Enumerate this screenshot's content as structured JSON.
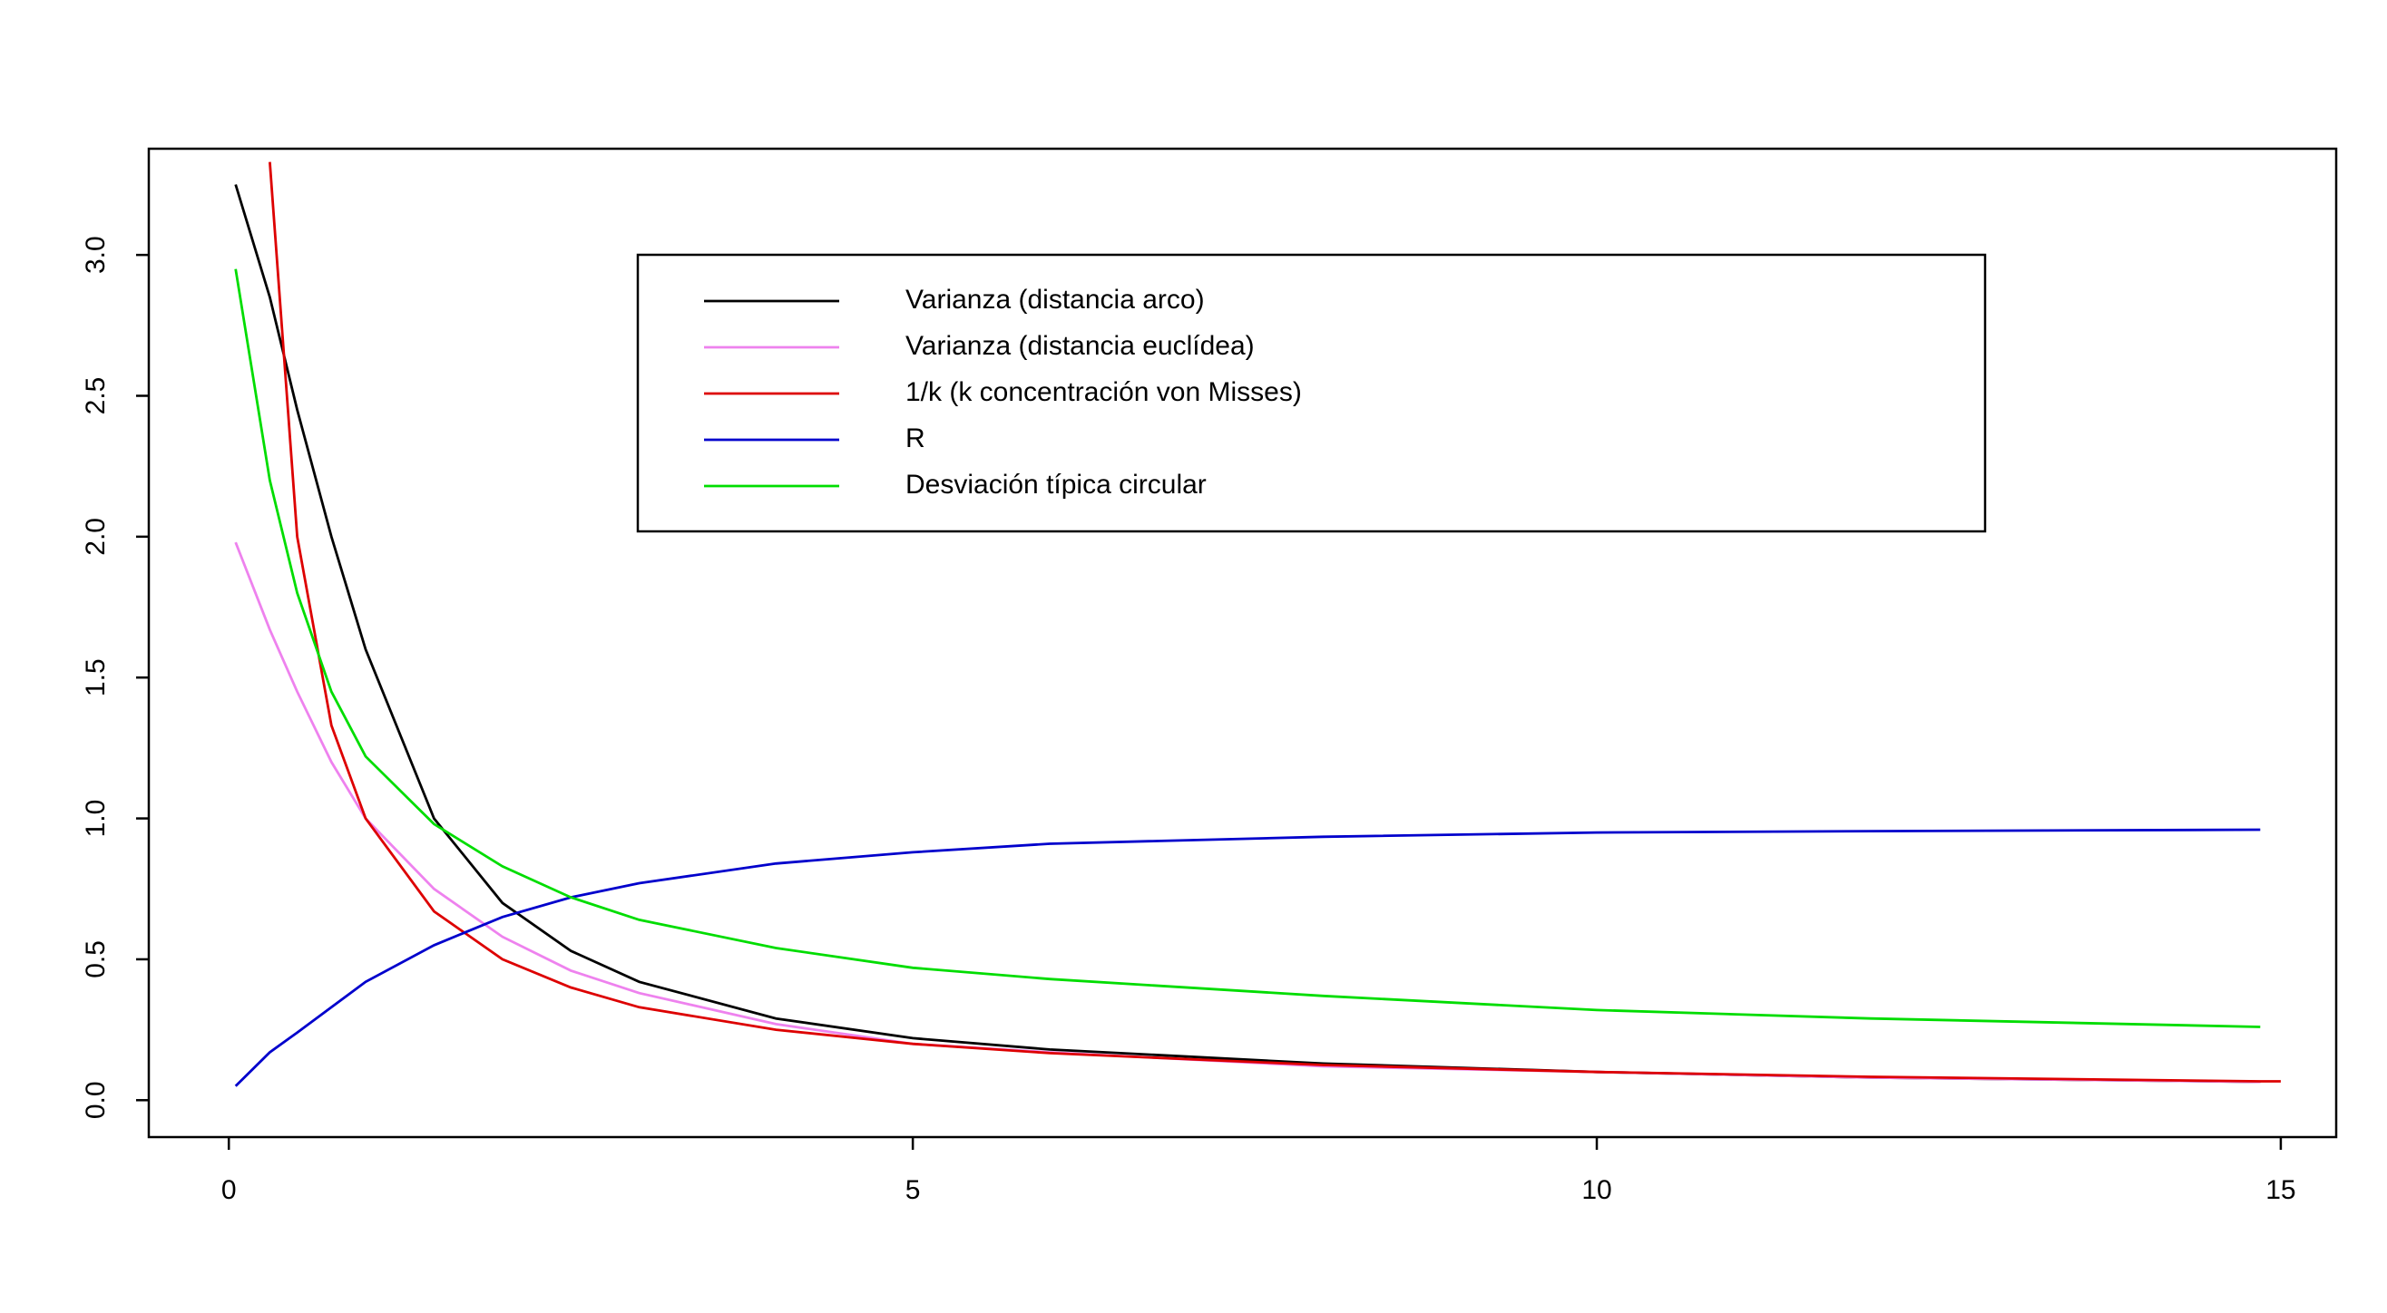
{
  "chart_data": {
    "type": "line",
    "x": [
      0.05,
      0.3,
      0.5,
      0.75,
      1,
      1.5,
      2,
      2.5,
      3,
      4,
      5,
      6,
      8,
      10,
      12,
      14.85,
      15
    ],
    "series": [
      {
        "name": "Varianza (distancia arco)",
        "color": "#000000",
        "values": [
          3.25,
          2.85,
          2.45,
          2.0,
          1.6,
          1.0,
          0.7,
          0.53,
          0.42,
          0.29,
          0.22,
          0.18,
          0.13,
          0.1,
          0.08,
          0.065,
          null
        ]
      },
      {
        "name": "Varianza (distancia euclídea)",
        "color": "#ee82ee",
        "values": [
          1.98,
          1.67,
          1.45,
          1.2,
          1.0,
          0.75,
          0.58,
          0.46,
          0.38,
          0.27,
          0.2,
          0.17,
          0.12,
          0.1,
          0.08,
          0.065,
          null
        ]
      },
      {
        "name": "1/k (k concentración von Misses)",
        "color": "#dd0000",
        "values": [
          null,
          3.33,
          2.0,
          1.33,
          1.0,
          0.67,
          0.5,
          0.4,
          0.33,
          0.25,
          0.2,
          0.167,
          0.125,
          0.1,
          0.083,
          0.067,
          0.067
        ]
      },
      {
        "name": "R",
        "color": "#0000cc",
        "values": [
          0.05,
          0.17,
          0.24,
          0.33,
          0.42,
          0.55,
          0.65,
          0.72,
          0.77,
          0.84,
          0.88,
          0.91,
          0.935,
          0.95,
          0.955,
          0.96,
          null
        ]
      },
      {
        "name": "Desviación típica circular",
        "color": "#00dd00",
        "values": [
          2.95,
          2.2,
          1.8,
          1.45,
          1.22,
          0.98,
          0.83,
          0.72,
          0.64,
          0.54,
          0.47,
          0.43,
          0.37,
          0.32,
          0.29,
          0.26,
          null
        ]
      }
    ],
    "xlim": [
      -0.585,
      15.405
    ],
    "ylim": [
      -0.131,
      3.377
    ],
    "xticks": [
      0,
      5,
      10,
      15
    ],
    "yticks": [
      {
        "value": 0,
        "label": "0.0"
      },
      0.5,
      {
        "value": 1,
        "label": "1.0"
      },
      1.5,
      {
        "value": 2,
        "label": "2.0"
      },
      2.5,
      {
        "value": 3,
        "label": "3.0"
      }
    ],
    "legend": "top"
  }
}
